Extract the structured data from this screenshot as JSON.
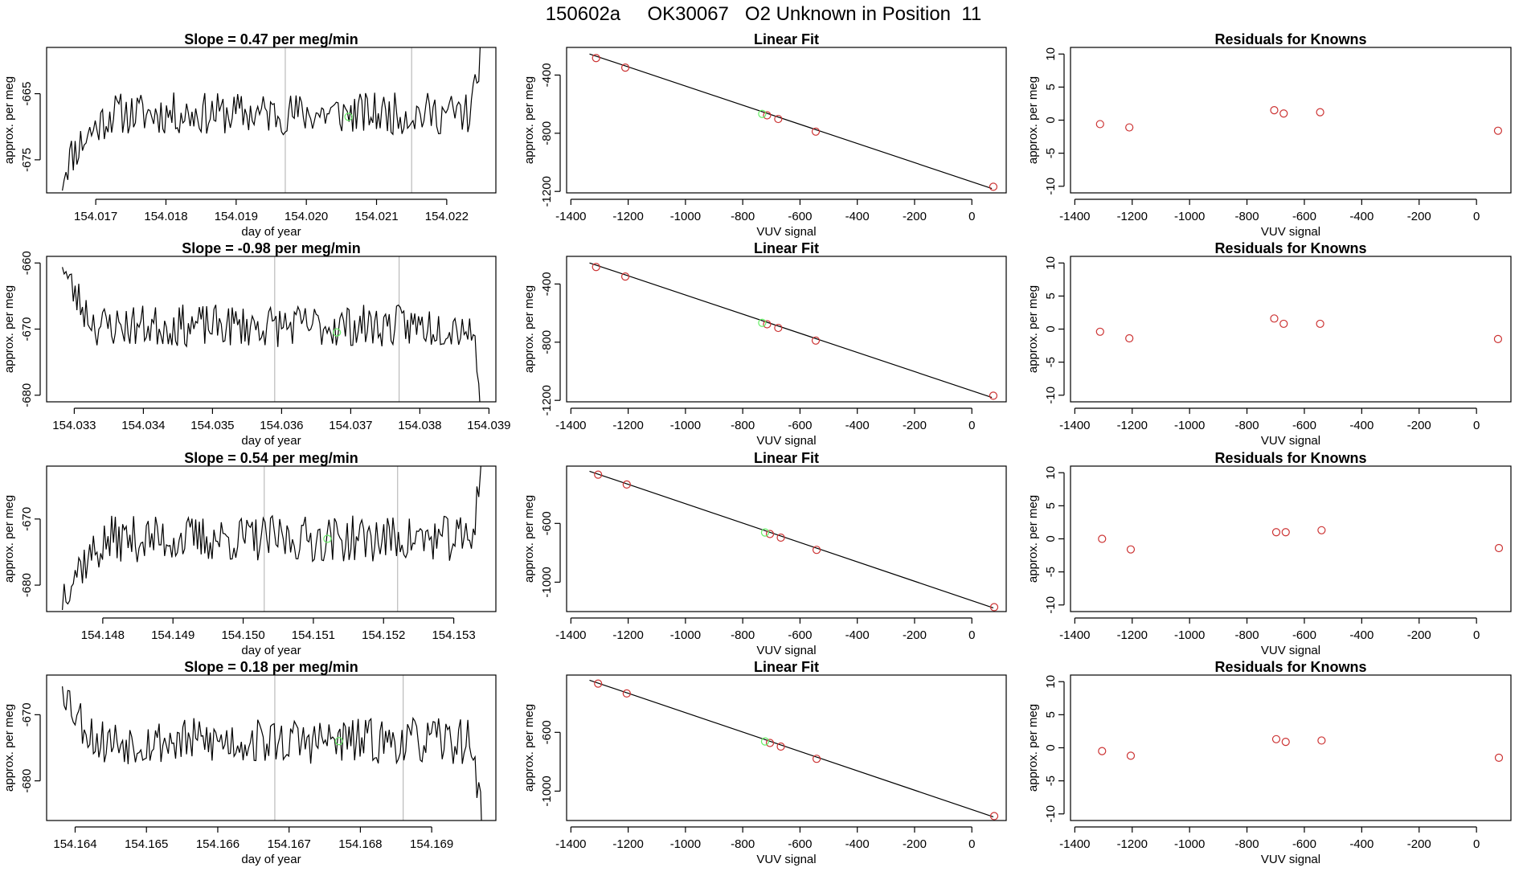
{
  "title": "150602a     OK30067   O2 Unknown in Position  11",
  "colors": {
    "line": "#000000",
    "known": "#cc3333",
    "unknown": "#66ee66",
    "vline": "#bbbbbb"
  },
  "chart_data": [
    {
      "type": "line",
      "row": 0,
      "title": "Slope =  0.47  per meg/min",
      "xlabel": "day of year",
      "ylabel": "approx. per meg",
      "xlim": [
        154.0163,
        154.0227
      ],
      "ylim": [
        -680,
        -658
      ],
      "xticks": [
        154.017,
        154.018,
        154.019,
        154.02,
        154.021,
        154.022
      ],
      "xtick_labels": [
        "154.017",
        "154.018",
        "154.019",
        "154.020",
        "154.021",
        "154.022"
      ],
      "yticks": [
        -675,
        -665
      ],
      "ytick_labels": [
        "-675",
        "-665"
      ],
      "vlines": [
        154.0197,
        154.0215
      ],
      "unknown_point": {
        "x": 154.0206,
        "y": -668.5
      },
      "seed": 11,
      "start_y": -678,
      "start_len": 0.0007,
      "level": -668,
      "end": "up",
      "noise": 2.0
    },
    {
      "type": "scatter",
      "row": 0,
      "title": "Linear Fit",
      "xlabel": "VUV signal",
      "ylabel": "approx. per meg",
      "xlim": [
        -1415,
        120
      ],
      "ylim": [
        -1210,
        -210
      ],
      "xticks": [
        -1400,
        -1200,
        -1000,
        -800,
        -600,
        -400,
        -200,
        0
      ],
      "xtick_labels": [
        "-1400",
        "-1200",
        "-1000",
        "-800",
        "-600",
        "-400",
        "-200",
        "0"
      ],
      "yticks": [
        -1200,
        -800,
        -400
      ],
      "ytick_labels": [
        "-1200",
        "-800",
        "-400"
      ],
      "fit_line": {
        "x": [
          -1335,
          70
        ],
        "y": [
          -255,
          -1180
        ]
      },
      "known_points": {
        "x": [
          -1312,
          -1210,
          -715,
          -676,
          -545,
          75
        ],
        "y": [
          -283,
          -349,
          -677,
          -702,
          -789,
          -1168
        ]
      },
      "unknown_point": {
        "x": -732,
        "y": -667
      }
    },
    {
      "type": "scatter",
      "row": 0,
      "title": "Residuals for Knowns",
      "xlabel": "VUV signal",
      "ylabel": "approx. per meg",
      "xlim": [
        -1415,
        120
      ],
      "ylim": [
        -11,
        11
      ],
      "xticks": [
        -1400,
        -1200,
        -1000,
        -800,
        -600,
        -400,
        -200,
        0
      ],
      "xtick_labels": [
        "-1400",
        "-1200",
        "-1000",
        "-800",
        "-600",
        "-400",
        "-200",
        "0"
      ],
      "yticks": [
        -10,
        -5,
        0,
        5,
        10
      ],
      "ytick_labels": [
        "-10",
        "-5",
        "0",
        "5",
        "10"
      ],
      "known_points": {
        "x": [
          -1312,
          -1210,
          -705,
          -672,
          -545,
          75
        ],
        "y": [
          -0.6,
          -1.1,
          1.5,
          1.0,
          1.2,
          -1.6
        ]
      }
    },
    {
      "type": "line",
      "row": 1,
      "title": "Slope =  -0.98  per meg/min",
      "xlabel": "day of year",
      "ylabel": "approx. per meg",
      "xlim": [
        154.0326,
        154.0391
      ],
      "ylim": [
        -681,
        -659
      ],
      "xticks": [
        154.033,
        154.034,
        154.035,
        154.036,
        154.037,
        154.038,
        154.039
      ],
      "xtick_labels": [
        "154.033",
        "154.034",
        "154.035",
        "154.036",
        "154.037",
        "154.038",
        "154.039"
      ],
      "yticks": [
        -680,
        -670,
        -660
      ],
      "ytick_labels": [
        "-680",
        "-670",
        "-660"
      ],
      "vlines": [
        154.0359,
        154.0377
      ],
      "unknown_point": {
        "x": 154.0368,
        "y": -670.5
      },
      "seed": 23,
      "start_y": -659,
      "start_len": 0.0005,
      "level": -669.5,
      "end": "down",
      "noise": 2.0
    },
    {
      "type": "scatter",
      "row": 1,
      "title": "Linear Fit",
      "xlabel": "VUV signal",
      "ylabel": "approx. per meg",
      "xlim": [
        -1415,
        120
      ],
      "ylim": [
        -1210,
        -210
      ],
      "xticks": [
        -1400,
        -1200,
        -1000,
        -800,
        -600,
        -400,
        -200,
        0
      ],
      "xtick_labels": [
        "-1400",
        "-1200",
        "-1000",
        "-800",
        "-600",
        "-400",
        "-200",
        "0"
      ],
      "yticks": [
        -1200,
        -800,
        -400
      ],
      "ytick_labels": [
        "-1200",
        "-800",
        "-400"
      ],
      "fit_line": {
        "x": [
          -1335,
          70
        ],
        "y": [
          -255,
          -1180
        ]
      },
      "known_points": {
        "x": [
          -1312,
          -1210,
          -715,
          -676,
          -545,
          75
        ],
        "y": [
          -283,
          -349,
          -677,
          -702,
          -789,
          -1168
        ]
      },
      "unknown_point": {
        "x": -732,
        "y": -667
      }
    },
    {
      "type": "scatter",
      "row": 1,
      "title": "Residuals for Knowns",
      "xlabel": "VUV signal",
      "ylabel": "approx. per meg",
      "xlim": [
        -1415,
        120
      ],
      "ylim": [
        -11,
        11
      ],
      "xticks": [
        -1400,
        -1200,
        -1000,
        -800,
        -600,
        -400,
        -200,
        0
      ],
      "xtick_labels": [
        "-1400",
        "-1200",
        "-1000",
        "-800",
        "-600",
        "-400",
        "-200",
        "0"
      ],
      "yticks": [
        -10,
        -5,
        0,
        5,
        10
      ],
      "ytick_labels": [
        "-10",
        "-5",
        "0",
        "5",
        "10"
      ],
      "known_points": {
        "x": [
          -1312,
          -1210,
          -705,
          -672,
          -545,
          75
        ],
        "y": [
          -0.4,
          -1.4,
          1.6,
          0.8,
          0.8,
          -1.5
        ]
      }
    },
    {
      "type": "line",
      "row": 2,
      "title": "Slope =  0.54  per meg/min",
      "xlabel": "day of year",
      "ylabel": "approx. per meg",
      "xlim": [
        154.1472,
        154.1536
      ],
      "ylim": [
        -684,
        -662
      ],
      "xticks": [
        154.148,
        154.149,
        154.15,
        154.151,
        154.152,
        154.153
      ],
      "xtick_labels": [
        "154.148",
        "154.149",
        "154.150",
        "154.151",
        "154.152",
        "154.153"
      ],
      "yticks": [
        -680,
        -670
      ],
      "ytick_labels": [
        "-680",
        "-670"
      ],
      "vlines": [
        154.1503,
        154.1522
      ],
      "unknown_point": {
        "x": 154.1512,
        "y": -673
      },
      "seed": 37,
      "start_y": -682,
      "start_len": 0.0007,
      "level": -673,
      "end": "up",
      "noise": 2.2
    },
    {
      "type": "scatter",
      "row": 2,
      "title": "Linear Fit",
      "xlabel": "VUV signal",
      "ylabel": "approx. per meg",
      "xlim": [
        -1415,
        120
      ],
      "ylim": [
        -1200,
        -210
      ],
      "xticks": [
        -1400,
        -1200,
        -1000,
        -800,
        -600,
        -400,
        -200,
        0
      ],
      "xtick_labels": [
        "-1400",
        "-1200",
        "-1000",
        "-800",
        "-600",
        "-400",
        "-200",
        "0"
      ],
      "yticks": [
        -1000,
        -600
      ],
      "ytick_labels": [
        "-1000",
        "-600"
      ],
      "fit_line": {
        "x": [
          -1335,
          75
        ],
        "y": [
          -245,
          -1175
        ]
      },
      "known_points": {
        "x": [
          -1305,
          -1205,
          -705,
          -667,
          -542,
          78
        ],
        "y": [
          -268,
          -335,
          -672,
          -697,
          -780,
          -1170
        ]
      },
      "unknown_point": {
        "x": -722,
        "y": -662
      }
    },
    {
      "type": "scatter",
      "row": 2,
      "title": "Residuals for Knowns",
      "xlabel": "VUV signal",
      "ylabel": "approx. per meg",
      "xlim": [
        -1415,
        120
      ],
      "ylim": [
        -11,
        11
      ],
      "xticks": [
        -1400,
        -1200,
        -1000,
        -800,
        -600,
        -400,
        -200,
        0
      ],
      "xtick_labels": [
        "-1400",
        "-1200",
        "-1000",
        "-800",
        "-600",
        "-400",
        "-200",
        "0"
      ],
      "yticks": [
        -10,
        -5,
        0,
        5,
        10
      ],
      "ytick_labels": [
        "-10",
        "-5",
        "0",
        "5",
        "10"
      ],
      "known_points": {
        "x": [
          -1305,
          -1205,
          -698,
          -665,
          -540,
          78
        ],
        "y": [
          0.0,
          -1.6,
          1.0,
          1.0,
          1.3,
          -1.4
        ]
      }
    },
    {
      "type": "line",
      "row": 3,
      "title": "Slope =  0.18  per meg/min",
      "xlabel": "day of year",
      "ylabel": "approx. per meg",
      "xlim": [
        154.1636,
        154.1699
      ],
      "ylim": [
        -686,
        -664
      ],
      "xticks": [
        154.164,
        154.165,
        154.166,
        154.167,
        154.168,
        154.169
      ],
      "xtick_labels": [
        "154.164",
        "154.165",
        "154.166",
        "154.167",
        "154.168",
        "154.169"
      ],
      "yticks": [
        -680,
        -670
      ],
      "ytick_labels": [
        "-680",
        "-670"
      ],
      "vlines": [
        154.1668,
        154.1686
      ],
      "unknown_point": {
        "x": 154.1677,
        "y": -674
      },
      "seed": 53,
      "start_y": -664,
      "start_len": 0.0005,
      "level": -674,
      "end": "down",
      "noise": 2.2
    },
    {
      "type": "scatter",
      "row": 3,
      "title": "Linear Fit",
      "xlabel": "VUV signal",
      "ylabel": "approx. per meg",
      "xlim": [
        -1415,
        120
      ],
      "ylim": [
        -1200,
        -210
      ],
      "xticks": [
        -1400,
        -1200,
        -1000,
        -800,
        -600,
        -400,
        -200,
        0
      ],
      "xtick_labels": [
        "-1400",
        "-1200",
        "-1000",
        "-800",
        "-600",
        "-400",
        "-200",
        "0"
      ],
      "yticks": [
        -1000,
        -600
      ],
      "ytick_labels": [
        "-1000",
        "-600"
      ],
      "fit_line": {
        "x": [
          -1335,
          75
        ],
        "y": [
          -245,
          -1175
        ]
      },
      "known_points": {
        "x": [
          -1305,
          -1205,
          -705,
          -667,
          -542,
          78
        ],
        "y": [
          -268,
          -335,
          -672,
          -697,
          -780,
          -1170
        ]
      },
      "unknown_point": {
        "x": -722,
        "y": -662
      }
    },
    {
      "type": "scatter",
      "row": 3,
      "title": "Residuals for Knowns",
      "xlabel": "VUV signal",
      "ylabel": "approx. per meg",
      "xlim": [
        -1415,
        120
      ],
      "ylim": [
        -11,
        11
      ],
      "xticks": [
        -1400,
        -1200,
        -1000,
        -800,
        -600,
        -400,
        -200,
        0
      ],
      "xtick_labels": [
        "-1400",
        "-1200",
        "-1000",
        "-800",
        "-600",
        "-400",
        "-200",
        "0"
      ],
      "yticks": [
        -10,
        -5,
        0,
        5,
        10
      ],
      "ytick_labels": [
        "-10",
        "-5",
        "0",
        "5",
        "10"
      ],
      "known_points": {
        "x": [
          -1305,
          -1205,
          -698,
          -665,
          -540,
          78
        ],
        "y": [
          -0.5,
          -1.2,
          1.3,
          0.9,
          1.1,
          -1.5
        ]
      }
    }
  ]
}
